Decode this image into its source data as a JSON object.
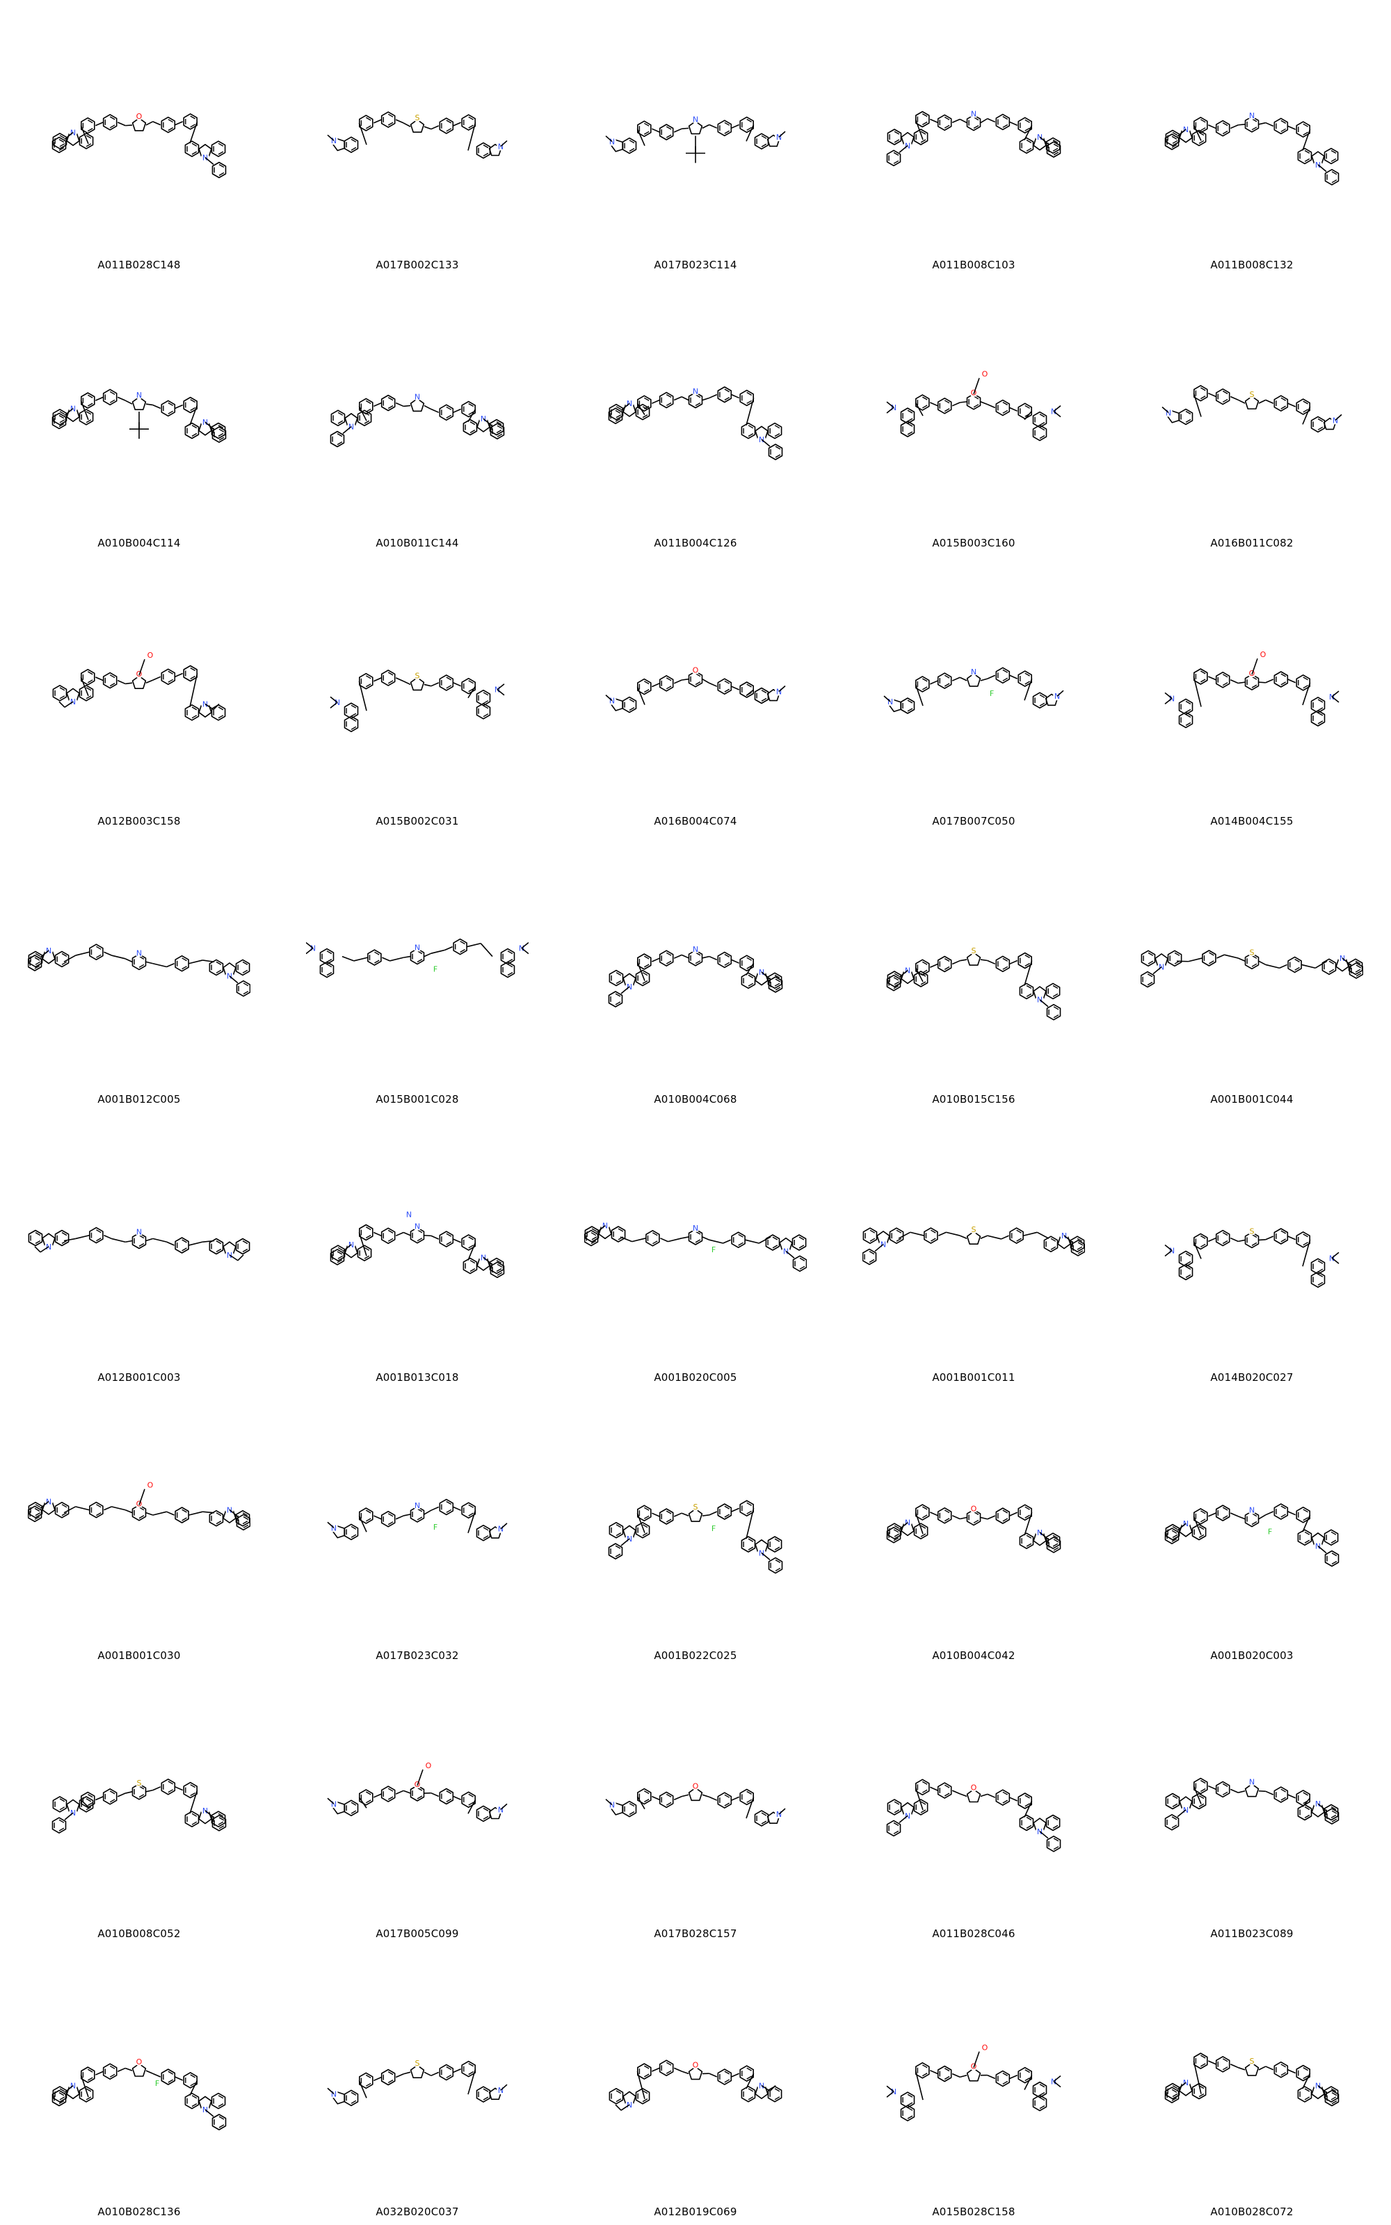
{
  "molecules": [
    {
      "id": "A011B028C148",
      "core": "oxadiazole-linked",
      "ring_pair": "carbazole"
    },
    {
      "id": "A017B002C133",
      "core": "thiophene-triazole",
      "ring_pair": "indazole"
    },
    {
      "id": "A017B023C114",
      "core": "tert-butyl-pyrazole",
      "ring_pair": "indazole"
    },
    {
      "id": "A011B008C103",
      "core": "pyridine",
      "ring_pair": "carbazole"
    },
    {
      "id": "A011B008C132",
      "core": "fused-aza",
      "ring_pair": "carbazole"
    },
    {
      "id": "A010B004C114",
      "core": "tert-butyl-pyrazole",
      "ring_pair": "carbazole"
    },
    {
      "id": "A010B011C144",
      "core": "thiazole",
      "ring_pair": "carbazole"
    },
    {
      "id": "A011B004C126",
      "core": "pyridine",
      "ring_pair": "carbazole"
    },
    {
      "id": "A015B003C160",
      "core": "ester-pyridine",
      "ring_pair": "dimethylamino"
    },
    {
      "id": "A016B011C082",
      "core": "thiophene",
      "ring_pair": "indazole"
    },
    {
      "id": "A012B003C158",
      "core": "furan-ester",
      "ring_pair": "ethylcarbazole"
    },
    {
      "id": "A015B002C031",
      "core": "thiophene-pyridine",
      "ring_pair": "dimethylamino"
    },
    {
      "id": "A016B004C074",
      "core": "pyridine-hydroxy",
      "ring_pair": "indazole"
    },
    {
      "id": "A017B007C050",
      "core": "pyrazole-CF3",
      "ring_pair": "indazole"
    },
    {
      "id": "A014B004C155",
      "core": "pyridine-ester",
      "ring_pair": "dimethylamino"
    },
    {
      "id": "A001B012C005",
      "core": "fluorene",
      "ring_pair": "carbazole"
    },
    {
      "id": "A015B001C028",
      "core": "vinyl-fluoro",
      "ring_pair": "dimethylamino"
    },
    {
      "id": "A010B004C068",
      "core": "spiro",
      "ring_pair": "carbazole"
    },
    {
      "id": "A010B015C156",
      "core": "benzothiophene-oxazole",
      "ring_pair": "carbazole"
    },
    {
      "id": "A001B001C044",
      "core": "sulfonyl-vinyl",
      "ring_pair": "carbazole"
    },
    {
      "id": "A012B001C003",
      "core": "vinyl-methyl",
      "ring_pair": "ethylcarbazole"
    },
    {
      "id": "A001B013C018",
      "core": "cyano-biphenyl",
      "ring_pair": "carbazole"
    },
    {
      "id": "A001B020C005",
      "core": "fluorene-fluoro",
      "ring_pair": "carbazole"
    },
    {
      "id": "A001B001C011",
      "core": "thiophene-vinyl",
      "ring_pair": "carbazole"
    },
    {
      "id": "A014B020C027",
      "core": "thioxanthene",
      "ring_pair": "dimethylamino"
    },
    {
      "id": "A001B001C030",
      "core": "acid-vinyl",
      "ring_pair": "carbazole"
    },
    {
      "id": "A017B023C032",
      "core": "CF3-terphenyl",
      "ring_pair": "indazole"
    },
    {
      "id": "A001B022C025",
      "core": "thiophene-fluoro",
      "ring_pair": "carbazole"
    },
    {
      "id": "A010B004C042",
      "core": "pyridine-hydroxy",
      "ring_pair": "carbazole"
    },
    {
      "id": "A001B020C003",
      "core": "fluoro-terphenyl",
      "ring_pair": "carbazole"
    },
    {
      "id": "A010B008C052",
      "core": "sulfonyl-terphenyl",
      "ring_pair": "carbazole"
    },
    {
      "id": "A017B005C099",
      "core": "acid-pyridine",
      "ring_pair": "indazole"
    },
    {
      "id": "A017B028C157",
      "core": "oxadiazole-furan",
      "ring_pair": "indazole"
    },
    {
      "id": "A011B028C046",
      "core": "oxadiazole-ether",
      "ring_pair": "carbazole"
    },
    {
      "id": "A011B023C089",
      "core": "pyrazole-methyl",
      "ring_pair": "carbazole"
    },
    {
      "id": "A010B028C136",
      "core": "oxadiazole-fluoro",
      "ring_pair": "carbazole"
    },
    {
      "id": "A032B020C037",
      "core": "boc-thiophene",
      "ring_pair": "indole"
    },
    {
      "id": "A012B019C069",
      "core": "furan-oxazole",
      "ring_pair": "ethylcarbazole"
    },
    {
      "id": "A015B028C158",
      "core": "oxadiazole-ester",
      "ring_pair": "dimethylamino"
    },
    {
      "id": "A010B028C072",
      "core": "oxadiazole-thio",
      "ring_pair": "carbazole"
    }
  ],
  "colors": {
    "bond": "#000000",
    "nitrogen": "#3050F8",
    "oxygen": "#FF0D0D",
    "sulfur": "#C8A000",
    "fluorine": "#33CC33"
  }
}
